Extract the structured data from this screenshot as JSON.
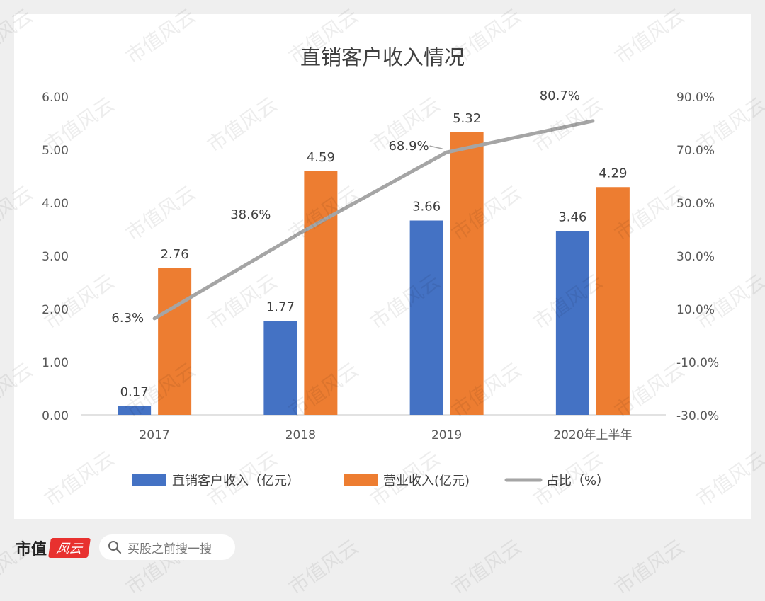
{
  "chart_data": {
    "type": "bar",
    "title": "直销客户收入情况",
    "categories": [
      "2017",
      "2018",
      "2019",
      "2020年上半年"
    ],
    "series": [
      {
        "name": "直销客户收入（亿元）",
        "type": "bar",
        "color": "#4472c4",
        "axis": "left",
        "values": [
          0.17,
          1.77,
          3.66,
          3.46
        ],
        "labels": [
          "0.17",
          "1.77",
          "3.66",
          "3.46"
        ]
      },
      {
        "name": "营业收入(亿元)",
        "type": "bar",
        "color": "#ed7d31",
        "axis": "left",
        "values": [
          2.76,
          4.59,
          5.32,
          4.29
        ],
        "labels": [
          "2.76",
          "4.59",
          "5.32",
          "4.29"
        ]
      },
      {
        "name": "占比（%）",
        "type": "line",
        "color": "#a5a5a5",
        "axis": "right",
        "values": [
          6.3,
          38.6,
          68.9,
          80.7
        ],
        "labels": [
          "6.3%",
          "38.6%",
          "68.9%",
          "80.7%"
        ]
      }
    ],
    "left_axis": {
      "ylim": [
        0,
        6
      ],
      "ticks": [
        "0.00",
        "1.00",
        "2.00",
        "3.00",
        "4.00",
        "5.00",
        "6.00"
      ]
    },
    "right_axis": {
      "ylim": [
        -30,
        90
      ],
      "ticks": [
        "-30.0%",
        "-10.0%",
        "10.0%",
        "30.0%",
        "50.0%",
        "70.0%",
        "90.0%"
      ]
    },
    "grid": false,
    "legend_position": "bottom"
  },
  "watermark": "市值风云",
  "footer": {
    "logo_text": "市值",
    "logo_seal": "风云",
    "search_placeholder": "买股之前搜一搜",
    "search_icon": "search-icon"
  }
}
